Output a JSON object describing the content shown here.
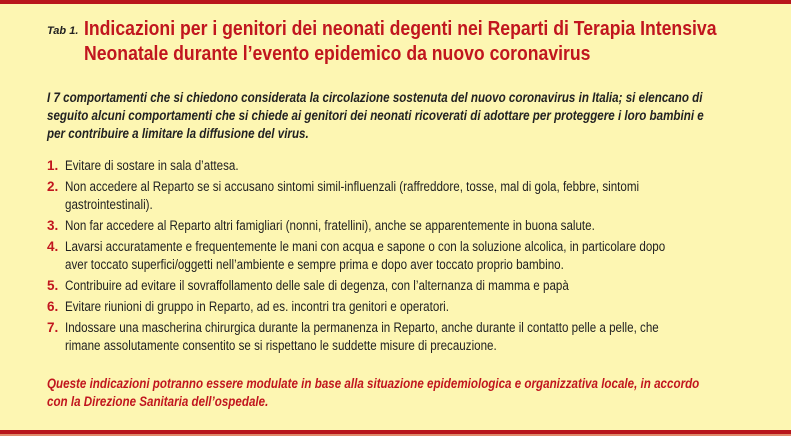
{
  "colors": {
    "background": "#fdf6b2",
    "accent": "#c1161e"
  },
  "tab_label": "Tab 1.",
  "title_lines": [
    "Indicazioni per i genitori dei neonati degenti nei Reparti di Terapia Intensiva",
    "Neonatale durante l’evento epidemico da nuovo coronavirus"
  ],
  "intro_lines": [
    "I 7 comportamenti che si chiedono considerata la circolazione sostenuta del nuovo coronavirus in Italia; si elencano di",
    "seguito alcuni comportamenti che si chiede ai genitori dei neonati ricoverati di adottare per proteggere i loro bambini e",
    "per contribuire a limitare la diffusione del virus."
  ],
  "items": [
    {
      "num": "1.",
      "lines": [
        "Evitare di sostare in sala d’attesa."
      ]
    },
    {
      "num": "2.",
      "lines": [
        "Non accedere al Reparto se si accusano sintomi simil-influenzali (raffreddore, tosse, mal di gola, febbre, sintomi",
        "gastrointestinali)."
      ]
    },
    {
      "num": "3.",
      "lines": [
        "Non far accedere al Reparto altri famigliari (nonni, fratellini), anche se apparentemente in buona salute."
      ]
    },
    {
      "num": "4.",
      "lines": [
        "Lavarsi accuratamente e frequentemente le mani con acqua e sapone o con la soluzione alcolica, in particolare dopo",
        "aver toccato superfici/oggetti nell’ambiente e sempre prima e dopo aver toccato proprio bambino."
      ]
    },
    {
      "num": "5.",
      "lines": [
        "Contribuire ad evitare il sovraffollamento delle sale di degenza, con l’alternanza di mamma e papà"
      ]
    },
    {
      "num": "6.",
      "lines": [
        "Evitare riunioni di gruppo in Reparto, ad es. incontri tra genitori e operatori."
      ]
    },
    {
      "num": "7.",
      "lines": [
        "Indossare una mascherina chirurgica durante la permanenza in Reparto, anche durante il contatto pelle a pelle, che",
        "rimane assolutamente consentito se si rispettano le suddette misure di precauzione."
      ]
    }
  ],
  "footer_lines": [
    "Queste indicazioni potranno essere modulate in base alla situazione epidemiologica e organizzativa locale, in accordo",
    "con la Direzione Sanitaria dell’ospedale."
  ]
}
